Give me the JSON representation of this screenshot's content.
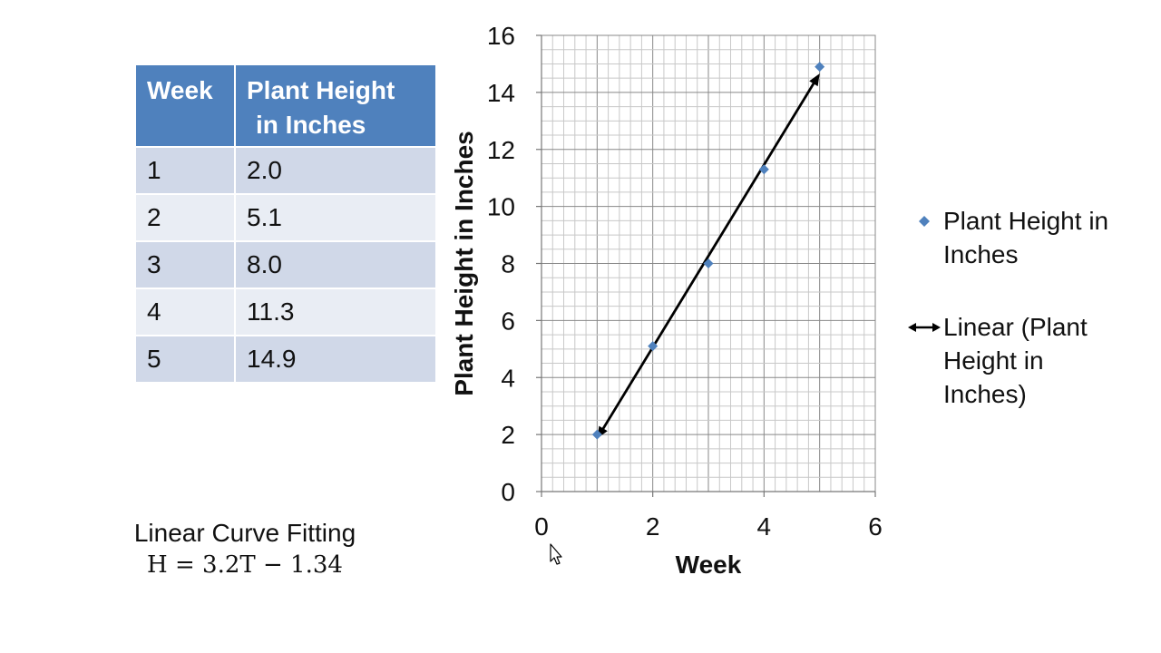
{
  "table": {
    "headers": [
      "Week",
      "Plant Height in Inches"
    ],
    "header_lines": [
      [
        "Week"
      ],
      [
        "Plant Height",
        "in Inches"
      ]
    ],
    "rows": [
      [
        "1",
        "2.0"
      ],
      [
        "2",
        "5.1"
      ],
      [
        "3",
        "8.0"
      ],
      [
        "4",
        "11.3"
      ],
      [
        "5",
        "14.9"
      ]
    ]
  },
  "fit": {
    "title": "Linear Curve Fitting",
    "equation": "H = 3.2T − 1.34"
  },
  "chart_data": {
    "type": "scatter",
    "title": "",
    "xlabel": "Week",
    "ylabel": "Plant Height in Inches",
    "xlim": [
      0,
      6
    ],
    "ylim": [
      0,
      16
    ],
    "xticks": [
      0,
      2,
      4,
      6
    ],
    "yticks": [
      0,
      2,
      4,
      6,
      8,
      10,
      12,
      14,
      16
    ],
    "grid": true,
    "legend_position": "right",
    "series": [
      {
        "name": "Plant Height in Inches",
        "name_lines": [
          "Plant Height in",
          "Inches"
        ],
        "marker": "diamond",
        "color": "#4f81bd",
        "x": [
          1,
          2,
          3,
          4,
          5
        ],
        "y": [
          2.0,
          5.1,
          8.0,
          11.3,
          14.9
        ]
      },
      {
        "name": "Linear (Plant Height in Inches)",
        "name_lines": [
          "Linear (Plant",
          "Height in",
          "Inches)"
        ],
        "type": "trendline",
        "color": "#000000",
        "x": [
          1,
          5
        ],
        "y": [
          1.86,
          14.66
        ]
      }
    ]
  },
  "colors": {
    "header_bg": "#4f81bd",
    "row_odd": "#d0d8e8",
    "row_even": "#e9edf4",
    "grid_major": "#888888",
    "grid_minor": "#c8c8c8"
  }
}
